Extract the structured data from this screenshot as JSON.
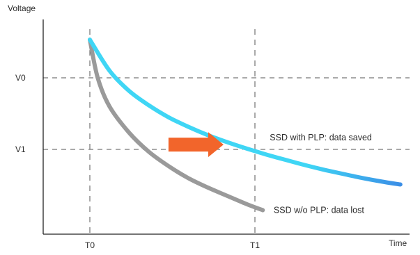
{
  "chart_data": {
    "type": "line",
    "xlabel": "Time",
    "ylabel": "Voltage",
    "xlim": [
      0,
      10
    ],
    "ylim": [
      0,
      10
    ],
    "x_ticks": [
      {
        "label": "T0",
        "value": 1.0
      },
      {
        "label": "T1",
        "value": 5.2
      }
    ],
    "y_ticks": [
      {
        "label": "V0",
        "value": 7.0
      },
      {
        "label": "V1",
        "value": 4.0
      }
    ],
    "series": [
      {
        "color": "#3fd6f5",
        "color_end": "#3b8ee6",
        "points": [
          [
            1.0,
            8.6
          ],
          [
            1.5,
            7.3
          ],
          [
            2.0,
            6.45
          ],
          [
            2.5,
            5.85
          ],
          [
            3.0,
            5.35
          ],
          [
            3.5,
            4.95
          ],
          [
            4.0,
            4.6
          ],
          [
            4.5,
            4.3
          ],
          [
            5.0,
            4.03
          ],
          [
            5.5,
            3.78
          ],
          [
            6.0,
            3.55
          ],
          [
            6.5,
            3.33
          ],
          [
            7.0,
            3.13
          ],
          [
            7.5,
            2.95
          ],
          [
            8.0,
            2.78
          ],
          [
            8.5,
            2.63
          ],
          [
            8.9,
            2.53
          ]
        ]
      },
      {
        "color": "#9a9a9a",
        "points": [
          [
            1.0,
            8.6
          ],
          [
            1.2,
            7.0
          ],
          [
            1.5,
            5.8
          ],
          [
            2.0,
            4.7
          ],
          [
            2.5,
            3.9
          ],
          [
            3.0,
            3.3
          ],
          [
            3.5,
            2.8
          ],
          [
            4.0,
            2.4
          ],
          [
            4.5,
            2.05
          ],
          [
            5.0,
            1.7
          ],
          [
            5.4,
            1.45
          ]
        ]
      }
    ],
    "annotations": [
      {
        "text": "SSD with PLP: data saved",
        "x": 5.4,
        "y": 4.5
      },
      {
        "text": "SSD w/o PLP: data lost",
        "x": 5.5,
        "y": 1.45
      }
    ],
    "arrow": {
      "color": "#f2652b",
      "from": [
        3.0,
        4.2
      ],
      "to": [
        4.4,
        4.2
      ]
    },
    "grid": false,
    "guide_lines": "dashed"
  }
}
